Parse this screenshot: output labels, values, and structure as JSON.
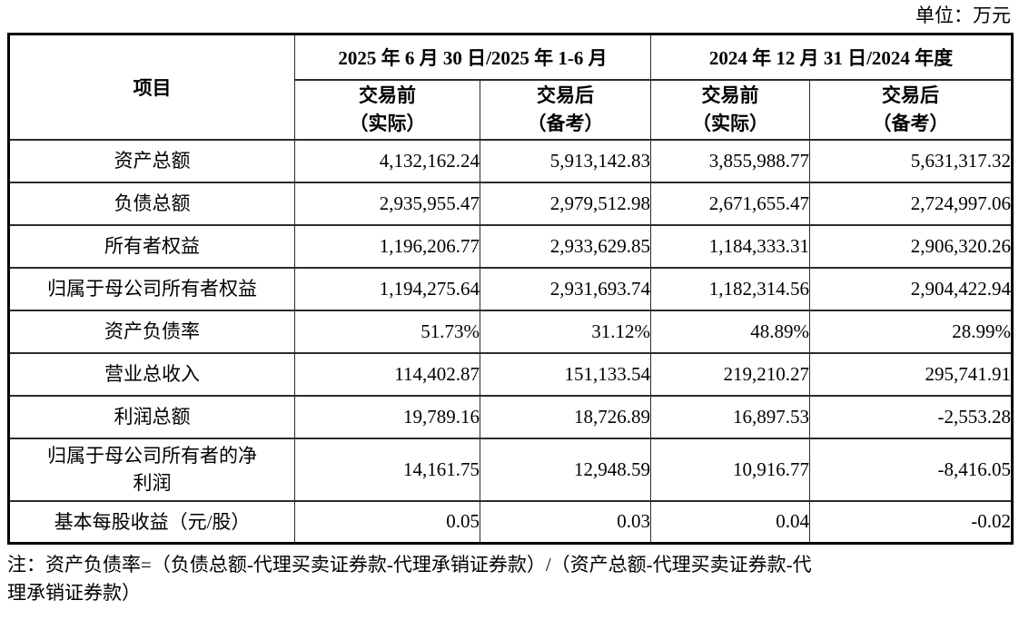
{
  "unit_label": "单位：万元",
  "table": {
    "item_header": "项目",
    "groups": [
      {
        "label": "2025 年 6 月 30 日/2025 年 1-6 月",
        "subcols": [
          {
            "label": "交易前\n（实际）"
          },
          {
            "label": "交易后\n（备考）"
          }
        ]
      },
      {
        "label": "2024 年 12 月 31 日/2024 年度",
        "subcols": [
          {
            "label": "交易前\n（实际）"
          },
          {
            "label": "交易后\n（备考）"
          }
        ]
      }
    ],
    "rows": [
      {
        "label": "资产总额",
        "values": [
          "4,132,162.24",
          "5,913,142.83",
          "3,855,988.77",
          "5,631,317.32"
        ]
      },
      {
        "label": "负债总额",
        "values": [
          "2,935,955.47",
          "2,979,512.98",
          "2,671,655.47",
          "2,724,997.06"
        ]
      },
      {
        "label": "所有者权益",
        "values": [
          "1,196,206.77",
          "2,933,629.85",
          "1,184,333.31",
          "2,906,320.26"
        ]
      },
      {
        "label": "归属于母公司所有者权益",
        "values": [
          "1,194,275.64",
          "2,931,693.74",
          "1,182,314.56",
          "2,904,422.94"
        ]
      },
      {
        "label": "资产负债率",
        "values": [
          "51.73%",
          "31.12%",
          "48.89%",
          "28.99%"
        ]
      },
      {
        "label": "营业总收入",
        "values": [
          "114,402.87",
          "151,133.54",
          "219,210.27",
          "295,741.91"
        ]
      },
      {
        "label": "利润总额",
        "values": [
          "19,789.16",
          "18,726.89",
          "16,897.53",
          "-2,553.28"
        ]
      },
      {
        "label": "归属于母公司所有者的净\n利润",
        "values": [
          "14,161.75",
          "12,948.59",
          "10,916.77",
          "-8,416.05"
        ]
      },
      {
        "label": "基本每股收益（元/股）",
        "values": [
          "0.05",
          "0.03",
          "0.04",
          "-0.02"
        ]
      }
    ]
  },
  "note": "注：资产负债率=（负债总额-代理买卖证券款-代理承销证券款）/（资产总额-代理买卖证券款-代\n理承销证券款）"
}
